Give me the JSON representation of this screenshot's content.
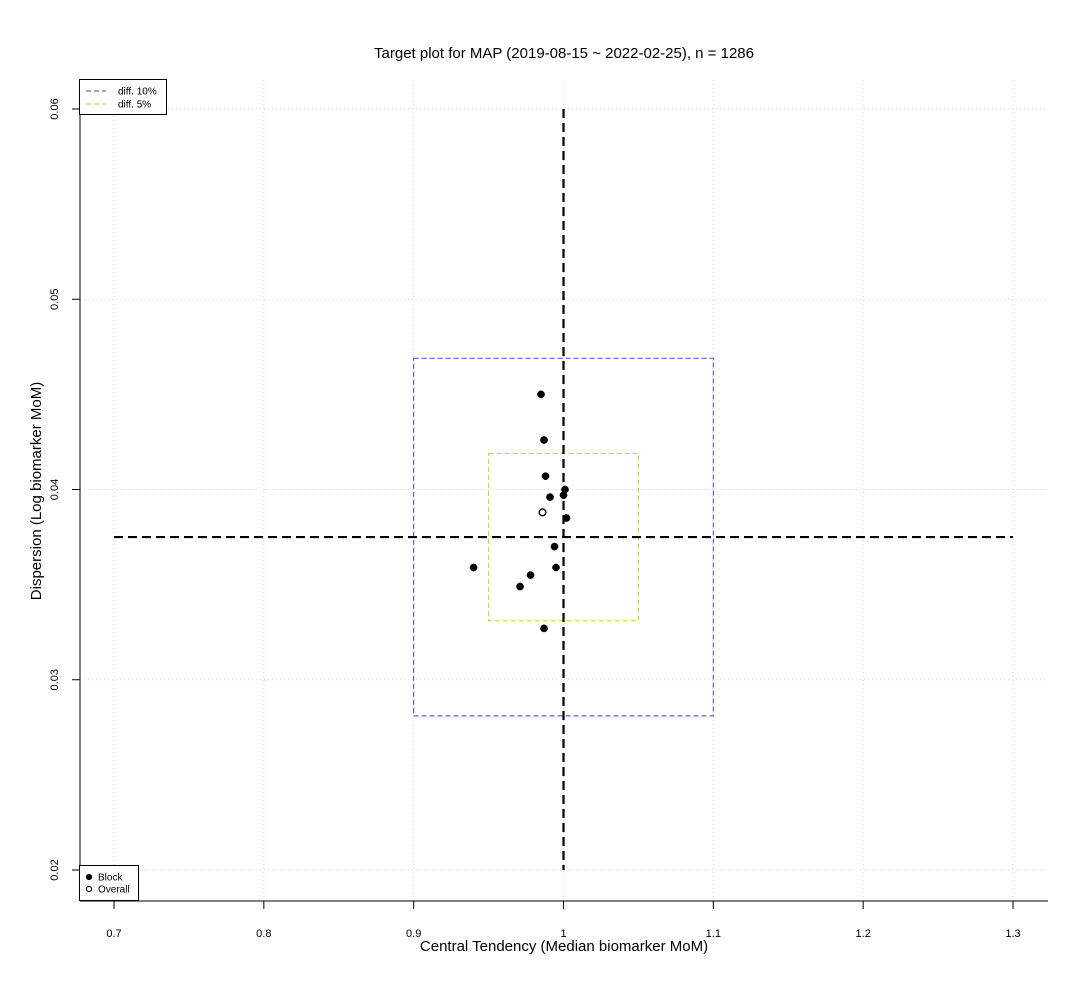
{
  "chart_data": {
    "type": "scatter",
    "title": "Target plot for MAP (2019-08-15 ~ 2022-02-25), n = 1286",
    "xlabel": "Central Tendency (Median biomarker MoM)",
    "ylabel": "Dispersion (Log biomarker MoM)",
    "xlim": [
      0.7,
      1.3
    ],
    "ylim": [
      0.02,
      0.06
    ],
    "x_ticks": [
      0.7,
      0.8,
      0.9,
      1.0,
      1.1,
      1.2,
      1.3
    ],
    "x_tick_labels": [
      "0.7",
      "0.8",
      "0.9",
      "1",
      "1.1",
      "1.2",
      "1.3"
    ],
    "y_ticks": [
      0.02,
      0.03,
      0.04,
      0.05,
      0.06
    ],
    "y_tick_labels": [
      "0.02",
      "0.03",
      "0.04",
      "0.05",
      "0.06"
    ],
    "grid": true,
    "reference_lines": {
      "vertical_x": 1.0,
      "vertical_y_range": [
        0.02,
        0.06
      ],
      "horizontal_y": 0.0375,
      "horizontal_x_range": [
        0.7,
        1.3
      ]
    },
    "target_boxes": [
      {
        "name": "diff. 10%",
        "color": "#4040e0",
        "x": [
          0.9,
          1.1
        ],
        "y": [
          0.0281,
          0.0469
        ]
      },
      {
        "name": "diff. 5%",
        "color": "#c8c838",
        "x": [
          0.95,
          1.05
        ],
        "y": [
          0.0331,
          0.0419
        ]
      }
    ],
    "series": [
      {
        "name": "Block",
        "marker": "filled-circle",
        "points": [
          {
            "x": 0.985,
            "y": 0.045
          },
          {
            "x": 0.987,
            "y": 0.0426
          },
          {
            "x": 0.988,
            "y": 0.0407
          },
          {
            "x": 1.001,
            "y": 0.04
          },
          {
            "x": 1.0,
            "y": 0.0397
          },
          {
            "x": 0.991,
            "y": 0.0396
          },
          {
            "x": 1.002,
            "y": 0.0385
          },
          {
            "x": 0.994,
            "y": 0.037
          },
          {
            "x": 0.995,
            "y": 0.0359
          },
          {
            "x": 0.94,
            "y": 0.0359
          },
          {
            "x": 0.978,
            "y": 0.0355
          },
          {
            "x": 0.971,
            "y": 0.0349
          },
          {
            "x": 0.987,
            "y": 0.0327
          }
        ]
      },
      {
        "name": "Overall",
        "marker": "open-circle",
        "points": [
          {
            "x": 0.986,
            "y": 0.0388
          }
        ]
      }
    ],
    "legends": {
      "top_left": [
        "diff. 10%",
        "diff. 5%"
      ],
      "bottom_left": [
        "Block",
        "Overall"
      ]
    }
  }
}
